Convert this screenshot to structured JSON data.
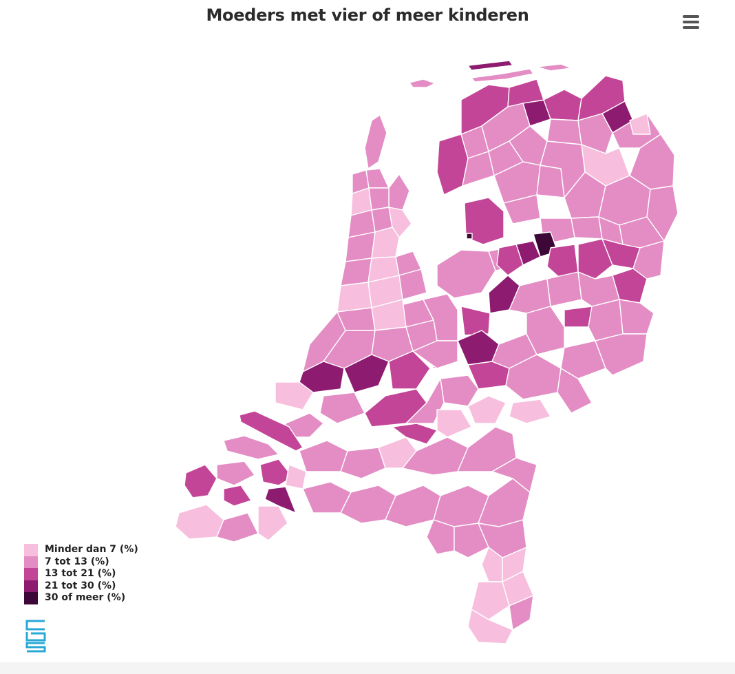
{
  "title": "Moeders met vier of meer kinderen",
  "menu": {
    "icon": "hamburger-menu-icon"
  },
  "legend": {
    "items": [
      {
        "label": "Minder dan 7 (%)",
        "color": "#f7bfdd"
      },
      {
        "label": "7 tot 13 (%)",
        "color": "#e38dc4"
      },
      {
        "label": "13 tot 21 (%)",
        "color": "#c34597"
      },
      {
        "label": "21 tot 30 (%)",
        "color": "#8d1b70"
      },
      {
        "label": "30 of meer (%)",
        "color": "#3d0838"
      }
    ]
  },
  "logo": {
    "icon": "cbs-logo-icon",
    "color": "#28a8d6"
  },
  "colors": {
    "border": "#ffffff",
    "background": "#ffffff"
  }
}
